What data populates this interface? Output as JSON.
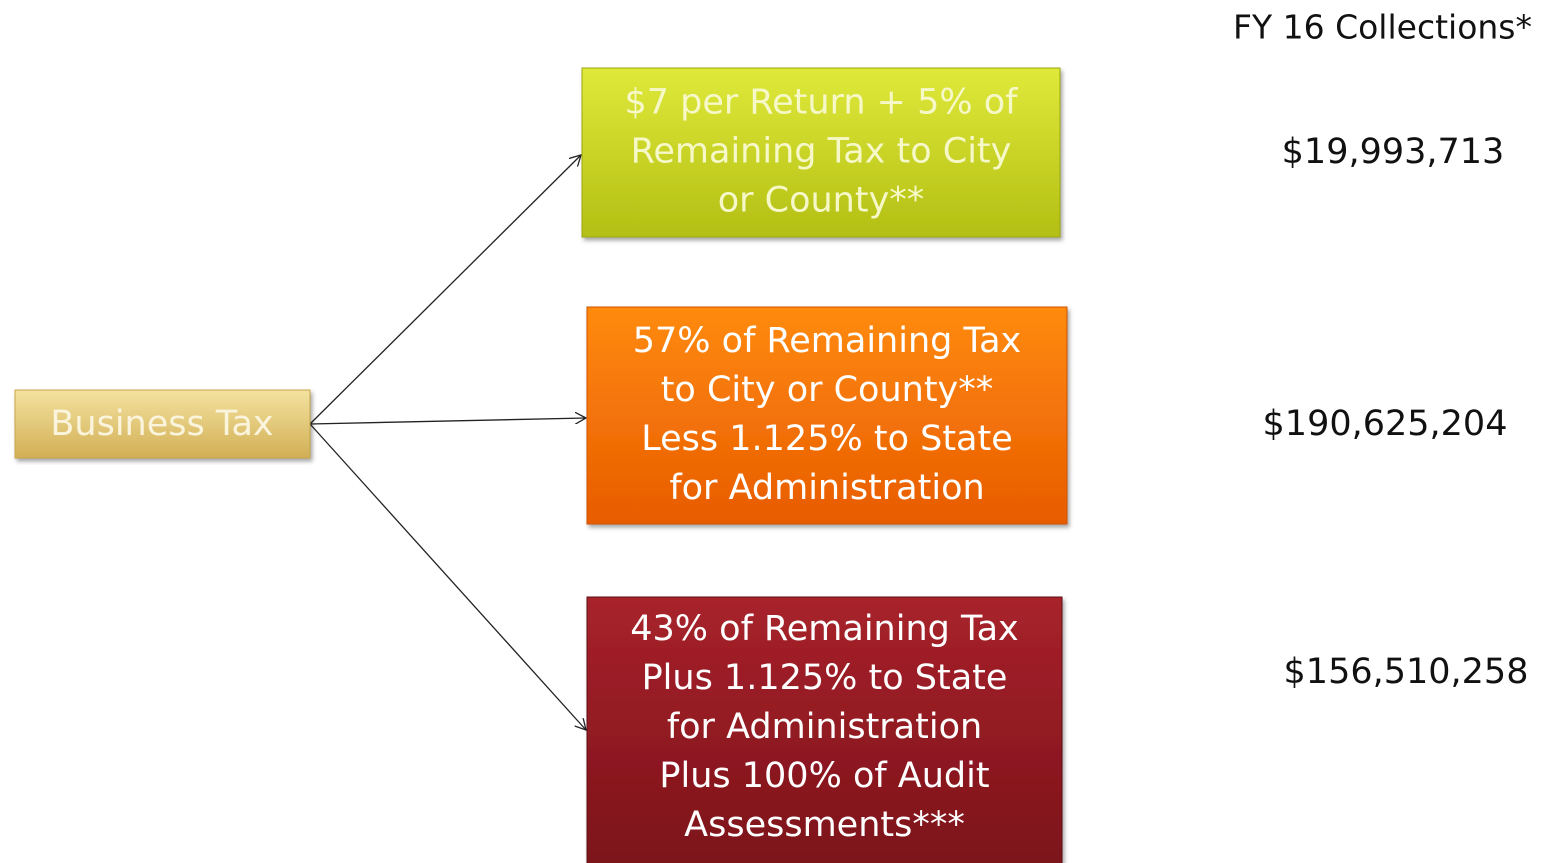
{
  "header": "FY 16 Collections*",
  "source": {
    "label": "Business Tax"
  },
  "targets": [
    {
      "lines": [
        "$7 per Return + 5% of",
        "Remaining Tax to City",
        "or County**"
      ],
      "amount": "$19,993,713"
    },
    {
      "lines": [
        "57% of Remaining Tax",
        "to City or County**",
        "Less 1.125% to State",
        "for Administration"
      ],
      "amount": "$190,625,204"
    },
    {
      "lines": [
        "43% of Remaining Tax",
        "Plus 1.125% to State",
        "for Administration",
        "Plus 100% of Audit",
        "Assessments***"
      ],
      "amount": "$156,510,258"
    }
  ]
}
